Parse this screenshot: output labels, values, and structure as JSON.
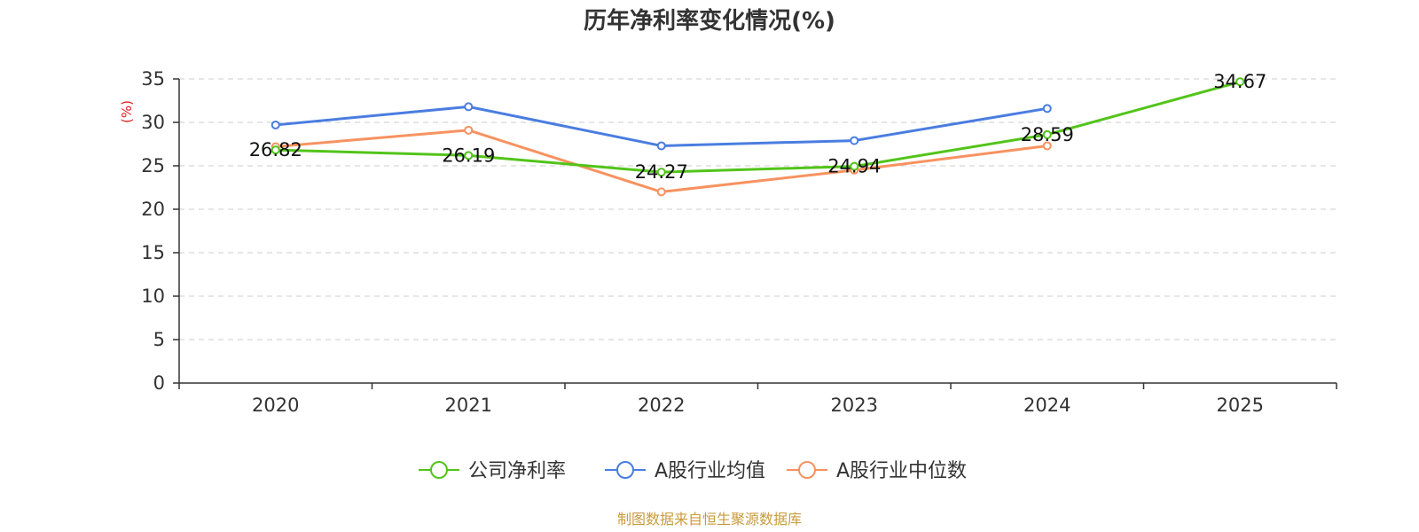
{
  "chart_data": {
    "type": "line",
    "title": "历年净利率变化情况(%)",
    "ylabel": "(%)",
    "xlabel": "",
    "categories": [
      "2020",
      "2021",
      "2022",
      "2023",
      "2024",
      "2025"
    ],
    "ylim": [
      0,
      35
    ],
    "yticks": [
      0,
      5,
      10,
      15,
      20,
      25,
      30,
      35
    ],
    "grid": true,
    "legend_position": "bottom",
    "series": [
      {
        "name": "公司净利率",
        "color": "#52c41a",
        "show_labels": true,
        "values": [
          26.82,
          26.19,
          24.27,
          24.94,
          28.59,
          34.67
        ],
        "labels": [
          "26.82",
          "26.19",
          "24.27",
          "24.94",
          "28.59",
          "34.67"
        ]
      },
      {
        "name": "A股行业均值",
        "color": "#4a7de0",
        "show_labels": false,
        "values": [
          29.7,
          31.8,
          27.3,
          27.9,
          31.6,
          null
        ]
      },
      {
        "name": "A股行业中位数",
        "color": "#f79260",
        "show_labels": false,
        "values": [
          27.2,
          29.1,
          22.0,
          24.5,
          27.3,
          null
        ]
      }
    ],
    "source": "制图数据来自恒生聚源数据库"
  }
}
